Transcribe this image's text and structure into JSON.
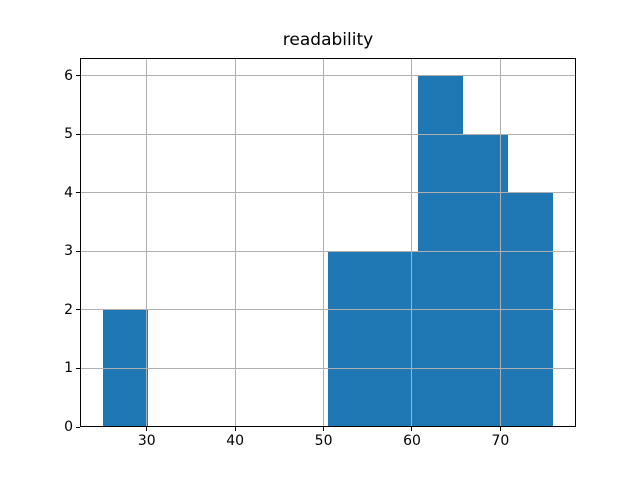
{
  "figure": {
    "background": "#ffffff"
  },
  "chart_data": {
    "type": "bar",
    "subtype": "histogram",
    "title": "readability",
    "xlabel": "",
    "ylabel": "",
    "bin_edges": [
      25.0,
      30.1,
      35.2,
      40.3,
      45.4,
      50.5,
      55.6,
      60.7,
      65.8,
      70.9,
      76.0
    ],
    "counts": [
      2,
      0,
      0,
      0,
      0,
      3,
      3,
      6,
      5,
      4
    ],
    "x_ticks": [
      30,
      40,
      50,
      60,
      70
    ],
    "y_ticks": [
      0,
      1,
      2,
      3,
      4,
      5,
      6
    ],
    "xlim": [
      22.45,
      78.55
    ],
    "ylim": [
      0,
      6.3
    ],
    "grid": true,
    "legend": null,
    "bar_color": "#1f77b4",
    "grid_color": "#b0b0b0",
    "axis_color": "#000000"
  }
}
